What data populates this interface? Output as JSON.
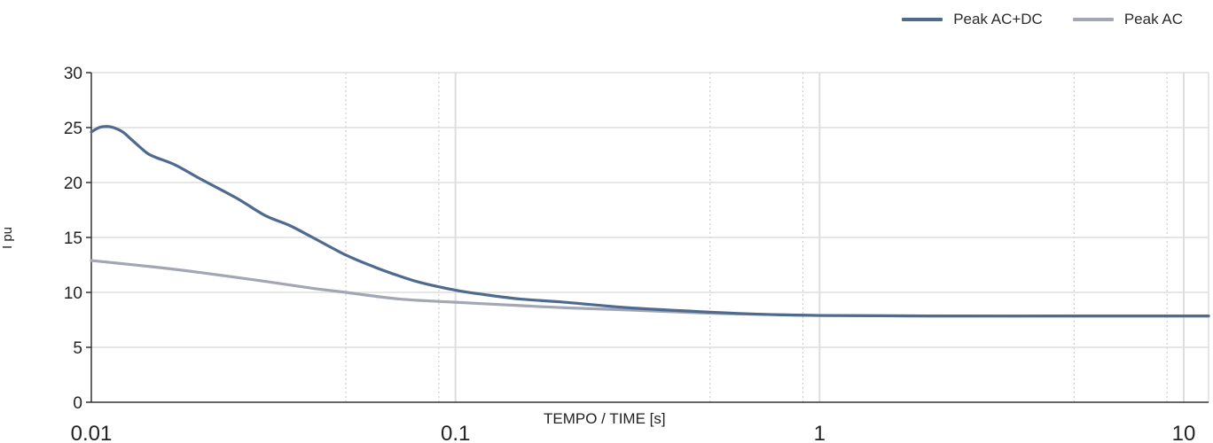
{
  "chart_data": {
    "type": "line",
    "title": "",
    "xlabel": "TEMPO / TIME [s]",
    "ylabel": "I pu",
    "x_scale": "log",
    "xlim": [
      0.01,
      11.7
    ],
    "ylim": [
      0,
      30
    ],
    "x_ticks": [
      {
        "value": 0.01,
        "label": "0.01"
      },
      {
        "value": 0.1,
        "label": "0.1"
      },
      {
        "value": 1,
        "label": "1"
      },
      {
        "value": 10,
        "label": "10"
      }
    ],
    "y_ticks": [
      {
        "value": 0,
        "label": "0"
      },
      {
        "value": 5,
        "label": "5"
      },
      {
        "value": 10,
        "label": "10"
      },
      {
        "value": 15,
        "label": "15"
      },
      {
        "value": 20,
        "label": "20"
      },
      {
        "value": 25,
        "label": "25"
      },
      {
        "value": 30,
        "label": "30"
      }
    ],
    "grid": true,
    "legend_position": "top-right",
    "series": [
      {
        "name": "Peak AC+DC",
        "color": "#4e6a8e",
        "x": [
          0.01,
          0.0105,
          0.011,
          0.0115,
          0.0122,
          0.013,
          0.0142,
          0.015,
          0.017,
          0.02,
          0.025,
          0.03,
          0.035,
          0.04,
          0.05,
          0.06,
          0.07,
          0.08,
          0.1,
          0.12,
          0.15,
          0.2,
          0.3,
          0.5,
          0.7,
          1,
          2,
          5,
          11.7
        ],
        "y": [
          24.6,
          25.0,
          25.1,
          25.0,
          24.6,
          23.8,
          22.7,
          22.3,
          21.6,
          20.3,
          18.6,
          17.0,
          16.1,
          15.1,
          13.4,
          12.3,
          11.5,
          10.9,
          10.2,
          9.8,
          9.4,
          9.1,
          8.6,
          8.2,
          8.0,
          7.9,
          7.85,
          7.85,
          7.85
        ]
      },
      {
        "name": "Peak AC",
        "color": "#a3a6b4",
        "x": [
          0.01,
          0.015,
          0.02,
          0.03,
          0.04,
          0.05,
          0.07,
          0.1,
          0.15,
          0.2,
          0.3,
          0.5,
          0.7,
          1,
          2,
          5,
          11.7
        ],
        "y": [
          12.9,
          12.3,
          11.8,
          11.0,
          10.4,
          10.0,
          9.4,
          9.1,
          8.8,
          8.6,
          8.4,
          8.1,
          8.0,
          7.9,
          7.85,
          7.85,
          7.85
        ]
      }
    ]
  }
}
